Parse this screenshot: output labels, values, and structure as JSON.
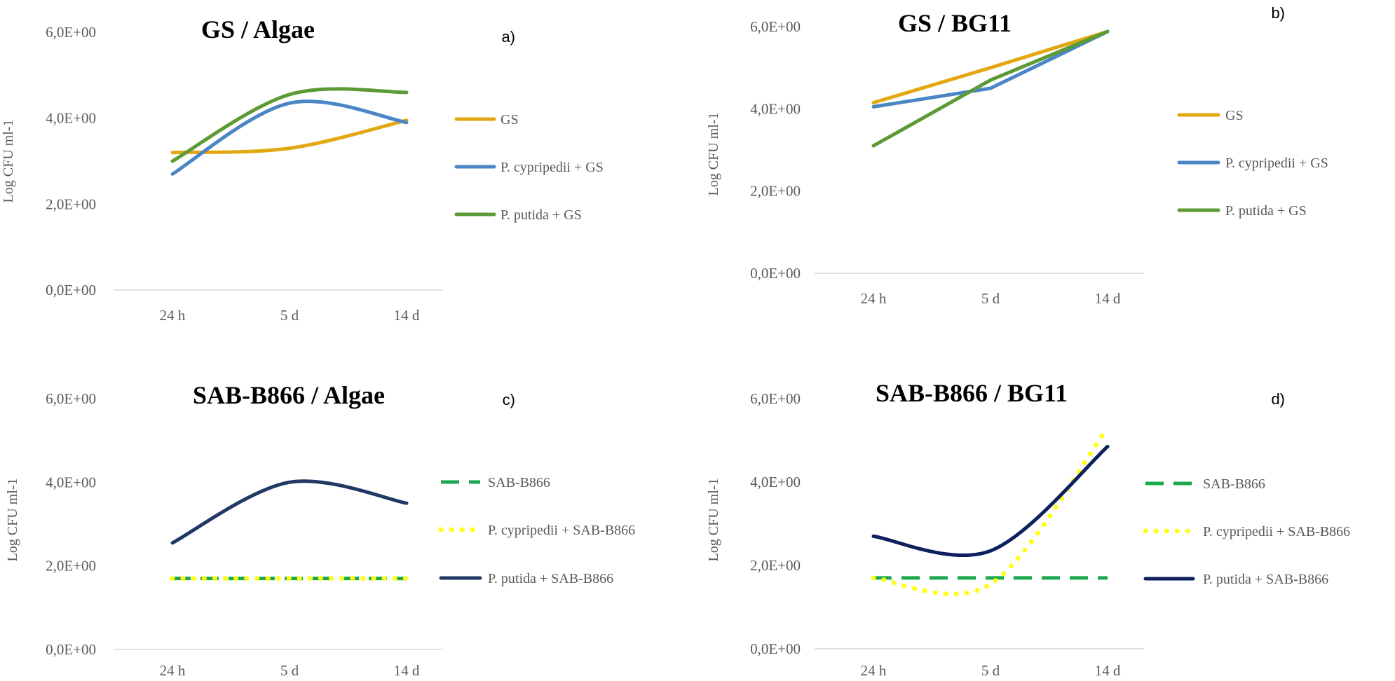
{
  "chart_data": [
    {
      "type": "line",
      "panel": "a)",
      "title": "GS / Algae",
      "ylabel": "Log CFU ml-1",
      "xlabel": "",
      "categories": [
        "24 h",
        "5 d",
        "14 d"
      ],
      "yticks": [
        "0,0E+00",
        "2,0E+00",
        "4,0E+00",
        "6,0E+00"
      ],
      "ylim": [
        0,
        6
      ],
      "smooth": true,
      "legend_position": "right",
      "series": [
        {
          "name": "GS",
          "values": [
            3.2,
            3.3,
            3.95
          ],
          "color": "#e3a712",
          "style": "solid"
        },
        {
          "name": "P. cypripedii + GS",
          "values": [
            2.7,
            4.35,
            3.9
          ],
          "color": "#4a86c5",
          "style": "solid"
        },
        {
          "name": "P. putida + GS",
          "values": [
            3.0,
            4.55,
            4.6
          ],
          "color": "#5b9a35",
          "style": "solid"
        }
      ]
    },
    {
      "type": "line",
      "panel": "b)",
      "title": "GS / BG11",
      "ylabel": "Log CFU ml-1",
      "xlabel": "",
      "categories": [
        "24 h",
        "5 d",
        "14 d"
      ],
      "yticks": [
        "0,0E+00",
        "2,0E+00",
        "4,0E+00",
        "6,0E+00"
      ],
      "ylim": [
        0,
        6
      ],
      "smooth": false,
      "legend_position": "right",
      "series": [
        {
          "name": "GS",
          "values": [
            4.15,
            5.0,
            5.88
          ],
          "color": "#e3a712",
          "style": "solid"
        },
        {
          "name": "P. cypripedii + GS",
          "values": [
            4.05,
            4.5,
            5.88
          ],
          "color": "#4a86c5",
          "style": "solid"
        },
        {
          "name": "P. putida + GS",
          "values": [
            3.1,
            4.7,
            5.88
          ],
          "color": "#5b9a35",
          "style": "solid"
        }
      ]
    },
    {
      "type": "line",
      "panel": "c)",
      "title": "SAB-B866 / Algae",
      "ylabel": "Log CFU ml-1",
      "xlabel": "",
      "categories": [
        "24 h",
        "5 d",
        "14 d"
      ],
      "yticks": [
        "0,0E+00",
        "2,0E+00",
        "4,0E+00",
        "6,0E+00"
      ],
      "ylim": [
        0,
        6
      ],
      "smooth": true,
      "legend_position": "right",
      "series": [
        {
          "name": "SAB-B866",
          "values": [
            1.7,
            1.7,
            1.7
          ],
          "color": "#1aa84c",
          "style": "dashed"
        },
        {
          "name": "P. cypripedii + SAB-B866",
          "values": [
            1.7,
            1.7,
            1.7
          ],
          "color": "#ffff19",
          "style": "dotted"
        },
        {
          "name": "P. putida + SAB-B866",
          "values": [
            2.55,
            4.0,
            3.5
          ],
          "color": "#1f3864",
          "style": "solid"
        }
      ]
    },
    {
      "type": "line",
      "panel": "d)",
      "title": "SAB-B866 / BG11",
      "ylabel": "Log CFU ml-1",
      "xlabel": "",
      "categories": [
        "24 h",
        "5 d",
        "14 d"
      ],
      "yticks": [
        "0,0E+00",
        "2,0E+00",
        "4,0E+00",
        "6,0E+00"
      ],
      "ylim": [
        0,
        6
      ],
      "smooth": true,
      "legend_position": "right",
      "series": [
        {
          "name": "SAB-B866",
          "values": [
            1.7,
            1.7,
            1.7
          ],
          "color": "#1aa84c",
          "style": "dashed"
        },
        {
          "name": "P. cypripedii + SAB-B866",
          "values": [
            1.7,
            1.55,
            5.3
          ],
          "color": "#ffff19",
          "style": "dotted"
        },
        {
          "name": "P. putida + SAB-B866",
          "values": [
            2.7,
            2.35,
            4.85
          ],
          "color": "#0d1f5c",
          "style": "solid"
        }
      ]
    }
  ]
}
